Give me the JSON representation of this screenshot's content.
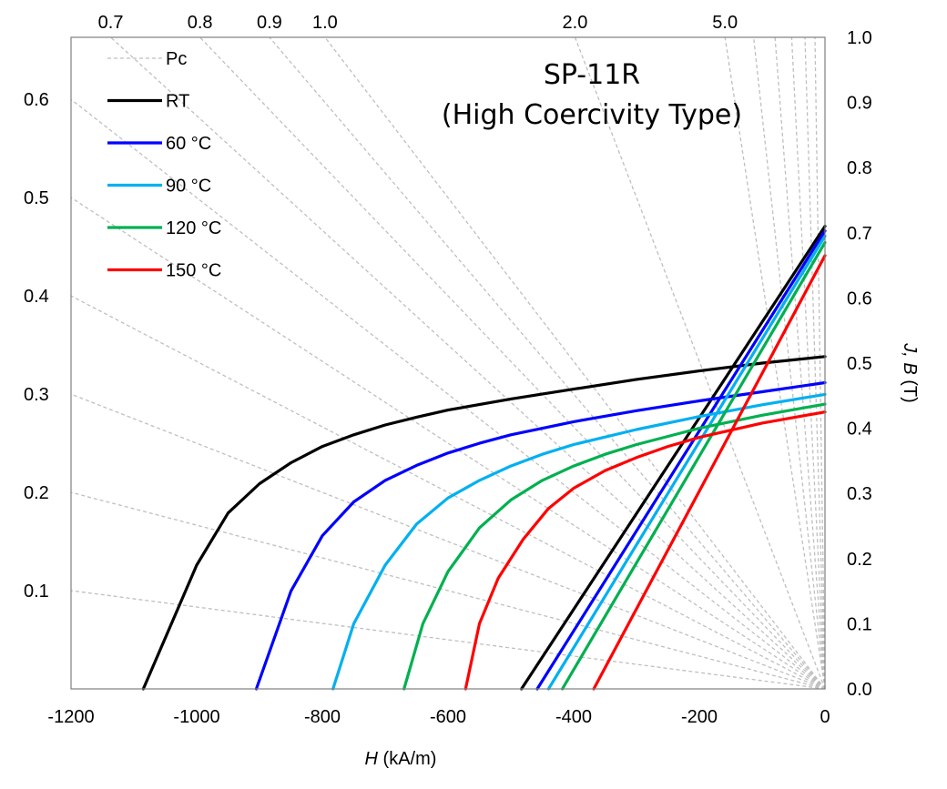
{
  "chart_data": {
    "type": "line",
    "title": "SP-11R",
    "subtitle": "(High Coercivity Type)",
    "xlabel": "H (kA/m)",
    "xlabel_italic": "H",
    "xlabel_unit": " (kA/m)",
    "y2label_italic": "J, B",
    "y2label_unit": " (T)",
    "xlim": [
      -1200,
      0
    ],
    "ylim": [
      0,
      1.0
    ],
    "x_ticks": [
      "-1200",
      "-1000",
      "-800",
      "-600",
      "-400",
      "-200",
      "0"
    ],
    "y_right_ticks": [
      "0.0",
      "0.1",
      "0.2",
      "0.3",
      "0.4",
      "0.5",
      "0.6",
      "0.7",
      "0.8",
      "0.9",
      "1.0"
    ],
    "y_left_ticks": [
      "0.1",
      "0.2",
      "0.3",
      "0.4",
      "0.5",
      "0.6"
    ],
    "pc_top_ticks": [
      "0.7",
      "0.8",
      "0.9",
      "1.0",
      "2.0",
      "5.0"
    ],
    "grid": false,
    "legend_position": "top-left",
    "pc_lines": {
      "name": "Pc",
      "color": "#bfbfbf",
      "left_edge_values": [
        0.1,
        0.2,
        0.3,
        0.4,
        0.5,
        0.6
      ],
      "top_edge_values": [
        0.7,
        0.8,
        0.9,
        1.0,
        2.0,
        5.0
      ],
      "extra_values": [
        7.0,
        10.0,
        15.0,
        25.0,
        50.0
      ]
    },
    "series": [
      {
        "name": "RT",
        "color": "#000000",
        "J": [
          [
            -1085,
            0.0
          ],
          [
            -1000,
            0.19
          ],
          [
            -950,
            0.27
          ],
          [
            -900,
            0.315
          ],
          [
            -850,
            0.347
          ],
          [
            -800,
            0.372
          ],
          [
            -750,
            0.39
          ],
          [
            -700,
            0.405
          ],
          [
            -650,
            0.417
          ],
          [
            -600,
            0.428
          ],
          [
            -500,
            0.445
          ],
          [
            -400,
            0.46
          ],
          [
            -300,
            0.475
          ],
          [
            -200,
            0.488
          ],
          [
            -100,
            0.5
          ],
          [
            0,
            0.51
          ]
        ],
        "B": [
          [
            -483,
            0.0
          ],
          [
            0,
            0.71
          ]
        ]
      },
      {
        "name": "60 °C",
        "color": "#0000ff",
        "J": [
          [
            -905,
            0.0
          ],
          [
            -850,
            0.15
          ],
          [
            -800,
            0.235
          ],
          [
            -750,
            0.287
          ],
          [
            -700,
            0.32
          ],
          [
            -650,
            0.343
          ],
          [
            -600,
            0.362
          ],
          [
            -550,
            0.377
          ],
          [
            -500,
            0.39
          ],
          [
            -400,
            0.41
          ],
          [
            -300,
            0.427
          ],
          [
            -200,
            0.442
          ],
          [
            -100,
            0.456
          ],
          [
            0,
            0.47
          ]
        ],
        "B": [
          [
            -458,
            0.0
          ],
          [
            0,
            0.703
          ]
        ]
      },
      {
        "name": "90 °C",
        "color": "#00b0f0",
        "J": [
          [
            -783,
            0.0
          ],
          [
            -750,
            0.1
          ],
          [
            -700,
            0.19
          ],
          [
            -650,
            0.253
          ],
          [
            -600,
            0.293
          ],
          [
            -550,
            0.32
          ],
          [
            -500,
            0.342
          ],
          [
            -450,
            0.36
          ],
          [
            -400,
            0.375
          ],
          [
            -300,
            0.398
          ],
          [
            -200,
            0.418
          ],
          [
            -100,
            0.436
          ],
          [
            0,
            0.452
          ]
        ],
        "B": [
          [
            -440,
            0.0
          ],
          [
            0,
            0.695
          ]
        ]
      },
      {
        "name": "120 °C",
        "color": "#00b050",
        "J": [
          [
            -670,
            0.0
          ],
          [
            -640,
            0.1
          ],
          [
            -600,
            0.18
          ],
          [
            -550,
            0.247
          ],
          [
            -500,
            0.29
          ],
          [
            -450,
            0.32
          ],
          [
            -400,
            0.342
          ],
          [
            -350,
            0.36
          ],
          [
            -300,
            0.375
          ],
          [
            -200,
            0.4
          ],
          [
            -100,
            0.42
          ],
          [
            0,
            0.437
          ]
        ],
        "B": [
          [
            -418,
            0.0
          ],
          [
            0,
            0.685
          ]
        ]
      },
      {
        "name": "150 °C",
        "color": "#ff0000",
        "J": [
          [
            -572,
            0.0
          ],
          [
            -550,
            0.1
          ],
          [
            -520,
            0.17
          ],
          [
            -480,
            0.23
          ],
          [
            -440,
            0.277
          ],
          [
            -400,
            0.308
          ],
          [
            -350,
            0.335
          ],
          [
            -300,
            0.355
          ],
          [
            -250,
            0.372
          ],
          [
            -200,
            0.386
          ],
          [
            -100,
            0.408
          ],
          [
            0,
            0.425
          ]
        ],
        "B": [
          [
            -368,
            0.0
          ],
          [
            0,
            0.665
          ]
        ]
      }
    ]
  }
}
